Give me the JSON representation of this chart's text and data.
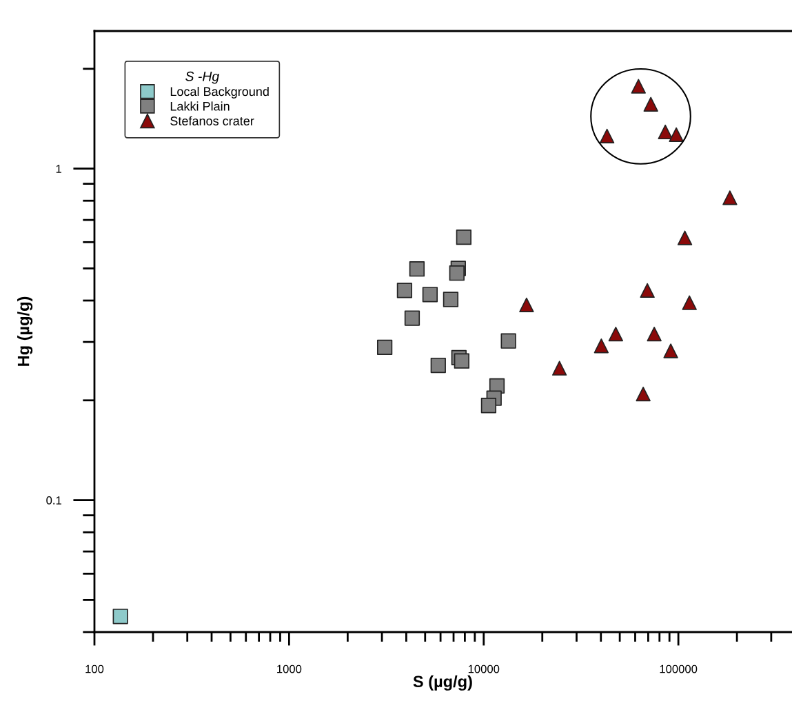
{
  "chart_data": {
    "type": "scatter",
    "xlabel": "S (µg/g)",
    "ylabel": "Hg (µg/g)",
    "legend_title": "S -Hg",
    "legend": "top left",
    "log": "xy",
    "grid": false,
    "xlim": [
      100,
      380000
    ],
    "xticks": [
      100,
      1000,
      10000,
      100000
    ],
    "ylim": [
      0.04,
      2.6
    ],
    "yticks": [
      0.1,
      1
    ],
    "series": [
      {
        "name": "Local Background",
        "color": "#8ecaca",
        "marker": "square",
        "x": [
          136
        ],
        "values": [
          0.0446
        ]
      },
      {
        "name": "Lakki Plain",
        "color": "#808080",
        "marker": "square",
        "x": [
          7900,
          4540,
          7400,
          7280,
          3920,
          5300,
          6770,
          4290,
          3100,
          13400,
          5840,
          7460,
          7710,
          11700,
          11300,
          10600
        ],
        "values": [
          0.621,
          0.498,
          0.5,
          0.484,
          0.429,
          0.417,
          0.403,
          0.354,
          0.289,
          0.302,
          0.255,
          0.269,
          0.263,
          0.221,
          0.203,
          0.193
        ]
      },
      {
        "name": "Stefanos crater",
        "color": "#8b0a0a",
        "marker": "triangle",
        "x": [
          62400,
          72200,
          85700,
          97600,
          43000,
          184000,
          108000,
          69300,
          114000,
          47700,
          75200,
          40200,
          91400,
          24500,
          66000,
          16600
        ],
        "values": [
          1.772,
          1.563,
          1.29,
          1.266,
          1.254,
          0.817,
          0.618,
          0.429,
          0.394,
          0.317,
          0.317,
          0.292,
          0.282,
          0.25,
          0.209,
          0.388
        ]
      }
    ]
  }
}
